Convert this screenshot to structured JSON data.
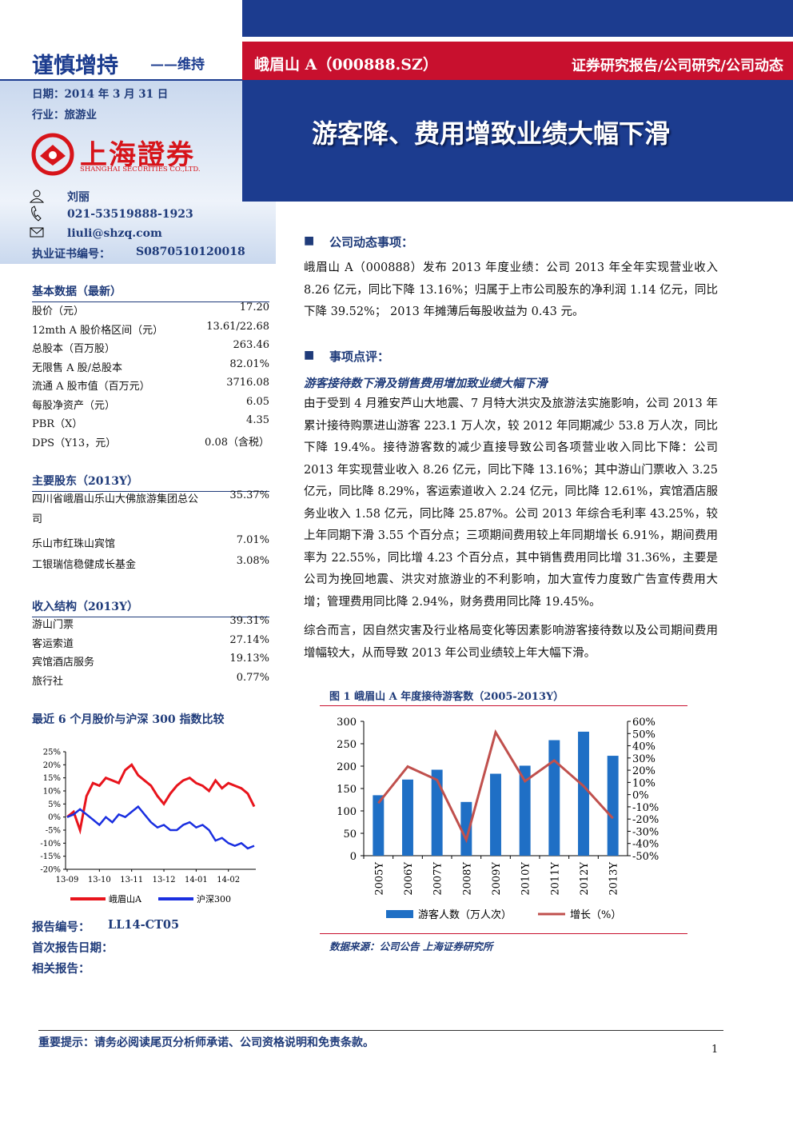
{
  "header": {
    "rating": "谨慎增持",
    "rating_note": "——维持",
    "stock": "峨眉山 A（000888.SZ）",
    "category": "证券研究报告/公司研究/公司动态",
    "title": "游客降、费用增致业绩大幅下滑"
  },
  "info": {
    "date": "日期：2014 年 3 月 31 日",
    "industry": "行业：旅游业",
    "logo_cn": "上海證券",
    "logo_en": "SHANGHAI SECURITIES CO.,LTD.",
    "analyst": "刘丽",
    "phone": "021-53519888-1923",
    "email": "liuli@shzq.com",
    "cert_label": "执业证书编号：",
    "cert": "S0870510120018"
  },
  "basic": {
    "title": "基本数据（最新）",
    "rows": [
      [
        "股价（元）",
        "17.20"
      ],
      [
        "12mth A 股价格区间（元）",
        "13.61/22.68"
      ],
      [
        "总股本（百万股）",
        "263.46"
      ],
      [
        "无限售 A 股/总股本",
        "82.01%"
      ],
      [
        "流通 A 股市值（百万元）",
        "3716.08"
      ],
      [
        "每股净资产（元）",
        "6.05"
      ],
      [
        "PBR（X）",
        "4.35"
      ],
      [
        "DPS（Y13，元）",
        "0.08（含税）"
      ]
    ]
  },
  "holders": {
    "title": "主要股东（2013Y）",
    "rows": [
      [
        "四川省峨眉山乐山大佛旅游集团总公司",
        "35.37%"
      ],
      [
        "乐山市红珠山宾馆",
        "7.01%"
      ],
      [
        "工银瑞信稳健成长基金",
        "3.08%"
      ]
    ]
  },
  "revenue": {
    "title": "收入结构（2013Y）",
    "rows": [
      [
        "游山门票",
        "39.31%"
      ],
      [
        "客运索道",
        "27.14%"
      ],
      [
        "宾馆酒店服务",
        "19.13%"
      ],
      [
        "旅行社",
        "0.77%"
      ]
    ]
  },
  "stock_chart_title": "最近 6 个月股价与沪深 300 指数比较",
  "report": {
    "number_label": "报告编号：",
    "number": "LL14-CT05",
    "first_label": "首次报告日期：",
    "related_label": "相关报告："
  },
  "sections": [
    {
      "heading": "公司动态事项：",
      "paragraphs": [
        "峨眉山 A（000888）发布 2013 年度业绩：公司 2013 年全年实现营业收入 8.26 亿元，同比下降 13.16%；归属于上市公司股东的净利润 1.14 亿元，同比下降 39.52%； 2013 年摊薄后每股收益为 0.43 元。"
      ]
    },
    {
      "heading": "事项点评：",
      "subheading": "游客接待数下滑及销售费用增加致业绩大幅下滑",
      "paragraphs": [
        "由于受到 4 月雅安芦山大地震、7 月特大洪灾及旅游法实施影响，公司 2013 年累计接待购票进山游客 223.1 万人次，较 2012 年同期减少 53.8 万人次，同比下降 19.4%。接待游客数的减少直接导致公司各项营业收入同比下降：公司 2013 年实现营业收入 8.26 亿元，同比下降 13.16%；其中游山门票收入 3.25 亿元，同比降 8.29%，客运索道收入 2.24 亿元，同比降 12.61%，宾馆酒店服务业收入 1.58 亿元，同比降 25.87%。公司 2013 年综合毛利率 43.25%，较上年同期下滑 3.55 个百分点；三项期间费用较上年同期增长 6.91%，期间费用率为 22.55%，同比增 4.23 个百分点，其中销售费用同比增 31.36%，主要是公司为挽回地震、洪灾对旅游业的不利影响，加大宣传力度致广告宣传费用大增；管理费用同比降 2.94%，财务费用同比降 19.45%。",
        "综合而言，因自然灾害及行业格局变化等因素影响游客接待数以及公司期间费用增幅较大，从而导致 2013 年公司业绩较上年大幅下滑。"
      ]
    }
  ],
  "figure": {
    "title": "图 1 峨眉山 A 年度接待游客数（2005-2013Y）",
    "source": "数据来源：公司公告 上海证券研究所"
  },
  "chart_data": [
    {
      "type": "line",
      "categories": [
        "13-09",
        null,
        null,
        null,
        null,
        "13-10",
        null,
        null,
        null,
        null,
        "13-11",
        null,
        null,
        null,
        null,
        "13-12",
        null,
        null,
        null,
        null,
        "14-01",
        null,
        null,
        null,
        null,
        "14-02",
        null,
        null,
        null,
        null
      ],
      "series": [
        {
          "name": "峨眉山A",
          "color": "#e8141c",
          "values": [
            0,
            2,
            -5,
            8,
            13,
            12,
            15,
            14,
            13,
            18,
            20,
            16,
            14,
            12,
            8,
            5,
            9,
            12,
            14,
            15,
            13,
            12,
            10,
            14,
            11,
            13,
            12,
            11,
            9,
            4
          ]
        },
        {
          "name": "沪深300",
          "color": "#1a2fe0",
          "values": [
            0,
            1,
            3,
            1,
            -1,
            -3,
            0,
            -2,
            1,
            0,
            2,
            4,
            1,
            -2,
            -4,
            -3,
            -5,
            -5,
            -3,
            -2,
            -4,
            -3,
            -5,
            -9,
            -8,
            -10,
            -11,
            -10,
            -12,
            -11
          ]
        }
      ],
      "ylim": [
        -20,
        25
      ],
      "yticks": [
        {
          "value": 25,
          "label": "25%"
        },
        {
          "value": 20,
          "label": "20%"
        },
        {
          "value": 15,
          "label": "15%"
        },
        {
          "value": 10,
          "label": "10%"
        },
        {
          "value": 5,
          "label": "5%"
        },
        {
          "value": 0,
          "label": "0%"
        },
        {
          "value": -5,
          "label": "-5%"
        },
        {
          "value": -10,
          "label": "-10%"
        },
        {
          "value": -15,
          "label": "-15%"
        },
        {
          "value": -20,
          "label": "-20%"
        }
      ],
      "legend": "bottom"
    },
    {
      "type": "bar",
      "categories": [
        "2005Y",
        "2006Y",
        "2007Y",
        "2008Y",
        "2009Y",
        "2010Y",
        "2011Y",
        "2012Y",
        "2013Y"
      ],
      "series": [
        {
          "name": "游客人数（万人次）",
          "type": "bar",
          "color": "#1f6fc5",
          "values": [
            135,
            170,
            192,
            120,
            183,
            201,
            258,
            276.9,
            223.1
          ]
        },
        {
          "name": "增长（%）",
          "type": "line",
          "axis": "y2",
          "color": "#c0504d",
          "values": [
            -7,
            23,
            12,
            -37,
            51,
            11,
            28,
            7,
            -19.4
          ]
        }
      ],
      "ylim": [
        0,
        300
      ],
      "yticks": [
        0,
        50,
        100,
        150,
        200,
        250,
        300
      ],
      "y2lim": [
        -50,
        60
      ],
      "y2ticks": [
        {
          "value": 60,
          "label": "60%"
        },
        {
          "value": 50,
          "label": "50%"
        },
        {
          "value": 40,
          "label": "40%"
        },
        {
          "value": 30,
          "label": "30%"
        },
        {
          "value": 20,
          "label": "20%"
        },
        {
          "value": 10,
          "label": "10%"
        },
        {
          "value": 0,
          "label": "0%"
        },
        {
          "value": -10,
          "label": "-10%"
        },
        {
          "value": -20,
          "label": "-20%"
        },
        {
          "value": -30,
          "label": "-30%"
        },
        {
          "value": -40,
          "label": "-40%"
        },
        {
          "value": -50,
          "label": "-50%"
        }
      ],
      "legend": "bottom"
    }
  ],
  "footer": {
    "notice": "重要提示：请务必阅读尾页分析师承诺、公司资格说明和免责条款。",
    "page": "1"
  }
}
